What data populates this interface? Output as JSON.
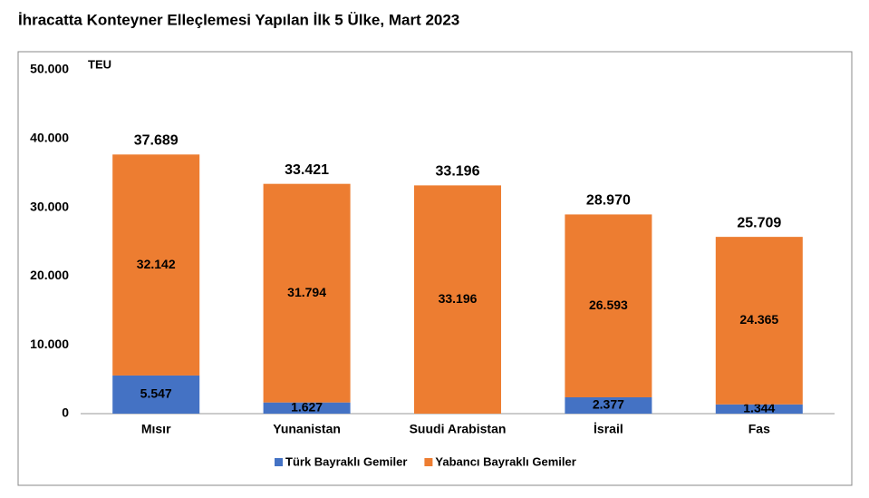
{
  "chart_data": {
    "type": "stacked-bar",
    "title": "İhracatta Konteyner Elleçlemesi Yapılan İlk 5 Ülke, Mart 2023",
    "y_label": "TEU",
    "categories": [
      "Mısır",
      "Yunanistan",
      "Suudi Arabistan",
      "İsrail",
      "Fas"
    ],
    "series": [
      {
        "name": "Türk Bayraklı Gemiler",
        "color": "#4472c4",
        "values": [
          5547,
          1627,
          null,
          2377,
          1344
        ],
        "value_labels": [
          "5.547",
          "1.627",
          null,
          "2.377",
          "1.344"
        ]
      },
      {
        "name": "Yabancı Bayraklı Gemiler",
        "color": "#ed7d31",
        "values": [
          32142,
          31794,
          33196,
          26593,
          24365
        ],
        "value_labels": [
          "32.142",
          "31.794",
          "33.196",
          "26.593",
          "24.365"
        ]
      }
    ],
    "totals": {
      "values": [
        37689,
        33421,
        33196,
        28970,
        25709
      ],
      "value_labels": [
        "37.689",
        "33.421",
        "33.196",
        "28.970",
        "25.709"
      ]
    },
    "ylim": [
      0,
      50000
    ],
    "yticks": [
      0,
      {
        "value": 10000,
        "label": "10.000"
      },
      {
        "value": 20000,
        "label": "20.000"
      },
      {
        "value": 30000,
        "label": "30.000"
      },
      {
        "value": 40000,
        "label": "40.000"
      },
      {
        "value": 50000,
        "label": "50.000"
      }
    ],
    "legend": "bottom"
  }
}
